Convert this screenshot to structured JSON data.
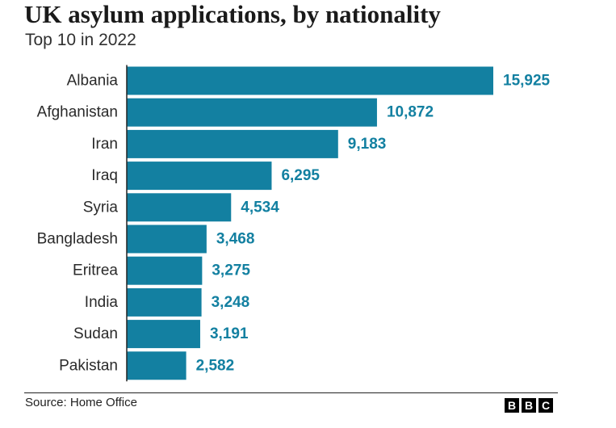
{
  "chart_data": {
    "type": "bar",
    "orientation": "horizontal",
    "title": "UK asylum applications, by nationality",
    "subtitle": "Top 10 in 2022",
    "categories": [
      "Albania",
      "Afghanistan",
      "Iran",
      "Iraq",
      "Syria",
      "Bangladesh",
      "Eritrea",
      "India",
      "Sudan",
      "Pakistan"
    ],
    "values": [
      15925,
      10872,
      9183,
      6295,
      4534,
      3468,
      3275,
      3248,
      3191,
      2582
    ],
    "value_labels": [
      "15,925",
      "10,872",
      "9,183",
      "6,295",
      "4,534",
      "3,468",
      "3,275",
      "3,248",
      "3,191",
      "2,582"
    ],
    "xlim": [
      0,
      15925
    ],
    "grid": false,
    "bar_color": "#1380a1",
    "label_color": "#1380a1"
  },
  "footer": {
    "source": "Source: Home Office",
    "logo": [
      "B",
      "B",
      "C"
    ]
  }
}
